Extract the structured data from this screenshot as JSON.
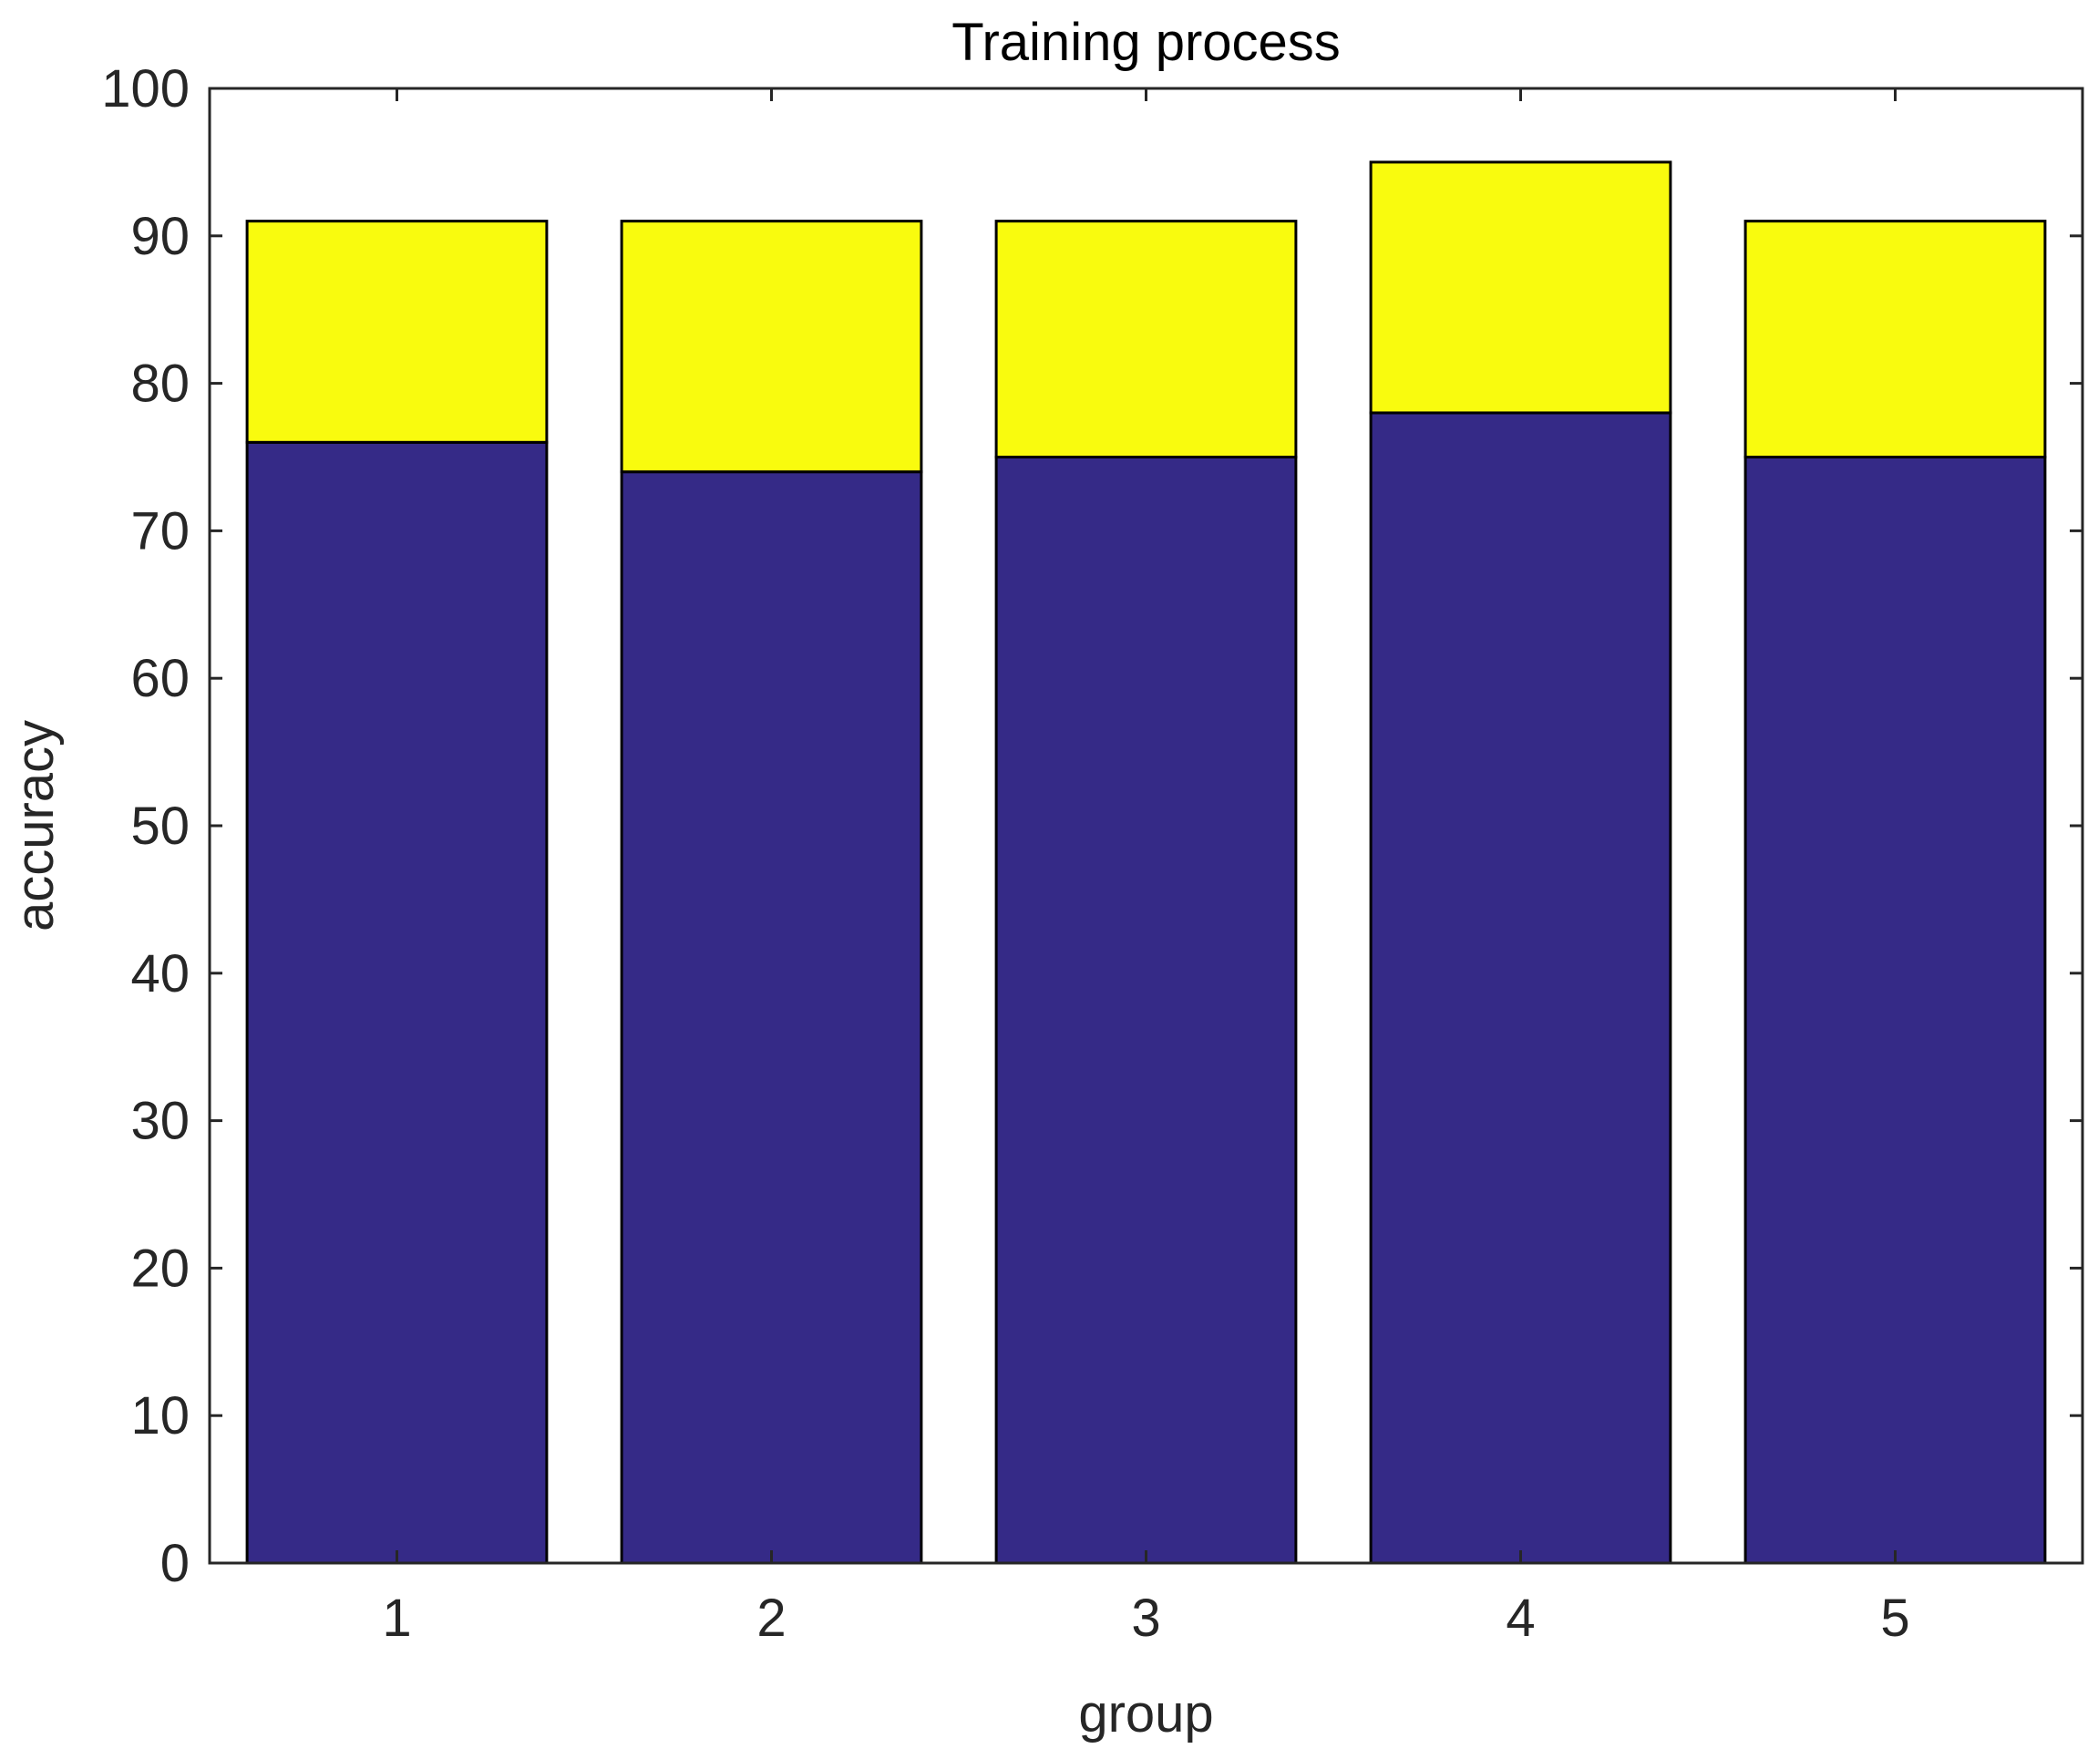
{
  "chart_data": {
    "type": "bar",
    "stacked": true,
    "title": "Training process",
    "xlabel": "group",
    "ylabel": "accuracy",
    "categories": [
      "1",
      "2",
      "3",
      "4",
      "5"
    ],
    "series": [
      {
        "values": [
          76,
          74,
          75,
          78,
          75
        ],
        "color": "#352a87"
      },
      {
        "values": [
          15,
          17,
          16,
          17,
          16
        ],
        "color": "#f9fb0e"
      }
    ],
    "ylim": [
      0,
      100
    ],
    "yticks": [
      0,
      10,
      20,
      30,
      40,
      50,
      60,
      70,
      80,
      90,
      100
    ],
    "grid": false,
    "legend": "none"
  }
}
